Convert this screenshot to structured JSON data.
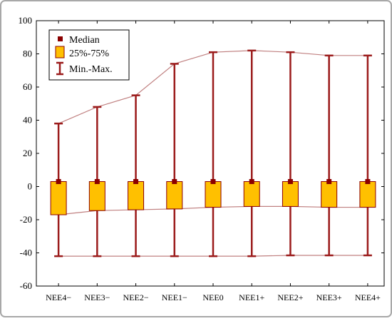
{
  "chart_data": {
    "type": "boxplot",
    "categories": [
      "NEE4−",
      "NEE3−",
      "NEE2−",
      "NEE1−",
      "NEE0",
      "NEE1+",
      "NEE2+",
      "NEE3+",
      "NEE4+"
    ],
    "median": [
      3,
      3,
      3,
      3,
      3,
      3,
      3,
      3,
      3
    ],
    "q1": [
      -17,
      -14.5,
      -14,
      -13.5,
      -12.5,
      -12,
      -12,
      -12.5,
      -12.5
    ],
    "q3": [
      3,
      3,
      3,
      3,
      3,
      3,
      3,
      3,
      3
    ],
    "min": [
      -42,
      -42,
      -42,
      -42,
      -42,
      -42,
      -41.5,
      -41.5,
      -41.5
    ],
    "max": [
      38,
      48,
      55,
      74,
      81,
      82,
      81,
      79,
      79
    ],
    "ylim": [
      -60,
      100
    ],
    "yticks": [
      "-60",
      "-40",
      "-20",
      "0",
      "20",
      "40",
      "60",
      "80",
      "100"
    ],
    "legend": {
      "placement": "top-left",
      "entries": [
        {
          "key": "median",
          "label": "Median"
        },
        {
          "key": "box",
          "label": "25%-75%"
        },
        {
          "key": "whisker",
          "label": "Min.-Max."
        }
      ]
    },
    "colors": {
      "box_fill": "#ffc000",
      "box_stroke": "#8b0000",
      "whisker": "#9b1b1b",
      "median": "#8b0000",
      "outline": "#c08080",
      "frame_outer": "#8f8f8f"
    },
    "grid": false
  }
}
